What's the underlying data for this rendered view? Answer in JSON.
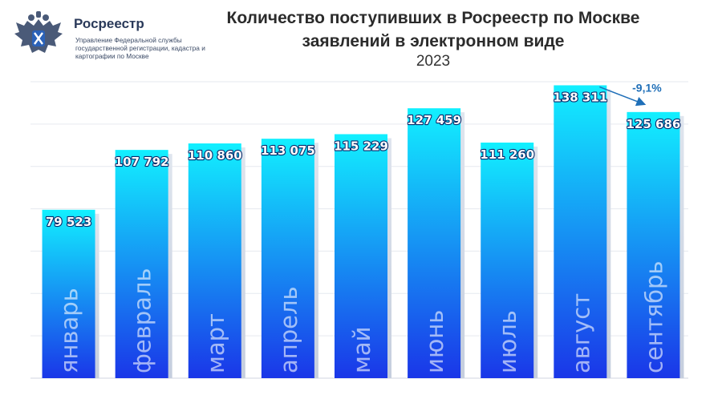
{
  "logo": {
    "name": "Росреестр",
    "subtitle": "Управление Федеральной службы государственной регистрации, кадастра и картографии по Москве",
    "icon": "eagle-emblem-icon"
  },
  "title": "Количество поступивших в Росреестр по Москве заявлений в электронном виде",
  "subtitle": "2023",
  "colors": {
    "bar_top": "#12f0ff",
    "bar_bottom": "#1a36e8",
    "gridline": "#e6e9ef",
    "annotation": "#1f6fb8"
  },
  "chart_data": {
    "type": "bar",
    "title": "Количество поступивших в Росреестр по Москве заявлений в электронном виде",
    "subtitle": "2023",
    "categories": [
      "январь",
      "февраль",
      "март",
      "апрель",
      "май",
      "июнь",
      "июль",
      "август",
      "сентябрь"
    ],
    "values": [
      79523,
      107792,
      110860,
      113075,
      115229,
      127459,
      111260,
      138311,
      125686
    ],
    "value_labels": [
      "79 523",
      "107 792",
      "110 860",
      "113 075",
      "115 229",
      "127 459",
      "111 260",
      "138 311",
      "125 686"
    ],
    "ylim": [
      0,
      140000
    ],
    "grid": true,
    "legend": "none",
    "annotations": [
      {
        "text": "-9,1%",
        "from": "август",
        "to": "сентябрь"
      }
    ]
  }
}
